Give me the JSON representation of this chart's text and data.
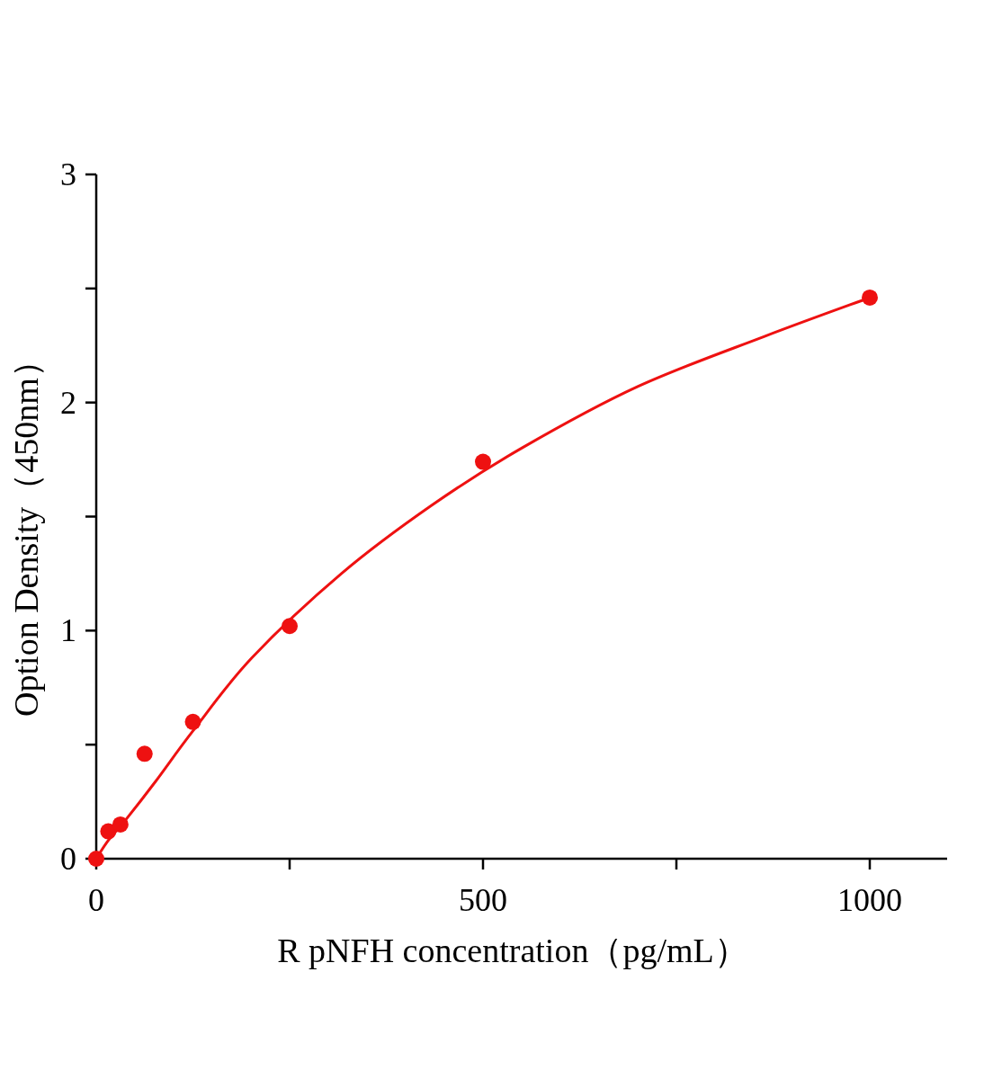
{
  "chart_data": {
    "type": "scatter",
    "xlabel": "R pNFH concentration（pg/mL）",
    "ylabel": "Option Density（450nm）",
    "xlim": [
      0,
      1100
    ],
    "ylim": [
      0,
      3
    ],
    "xticks": [
      0,
      {
        "value": 250,
        "label": null
      },
      500,
      {
        "value": 750,
        "label": null
      },
      1000
    ],
    "yticks": [
      0,
      {
        "value": 0.5,
        "label": null
      },
      1,
      {
        "value": 1.5,
        "label": null
      },
      2,
      {
        "value": 2.5,
        "label": null
      },
      3
    ],
    "series": [
      {
        "type": "scatter",
        "marker": "circle",
        "color": "#ee1111",
        "x": [
          0,
          15.6,
          31.25,
          62.5,
          125,
          250,
          500,
          1000
        ],
        "values": [
          0,
          0.12,
          0.15,
          0.46,
          0.6,
          1.02,
          1.74,
          2.46
        ]
      },
      {
        "type": "line",
        "marker": "none",
        "color": "#ee1111",
        "x": [
          0,
          15.6,
          38,
          77,
          125,
          201,
          317,
          434,
          550,
          700,
          864,
          1000
        ],
        "values": [
          0,
          0.08,
          0.17,
          0.34,
          0.56,
          0.88,
          1.25,
          1.55,
          1.8,
          2.07,
          2.29,
          2.46
        ]
      }
    ]
  }
}
